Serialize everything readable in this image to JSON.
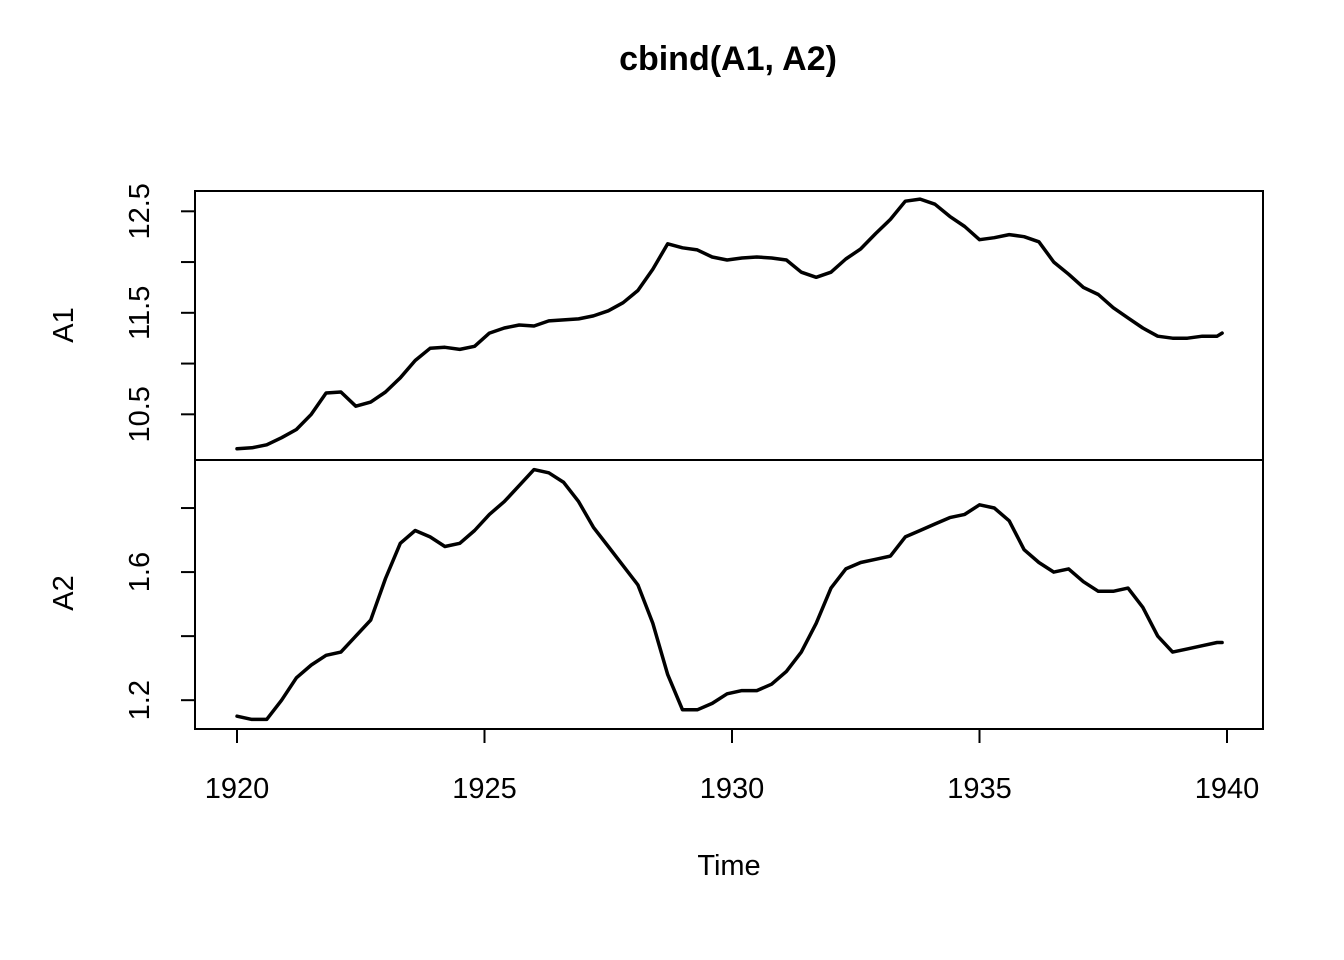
{
  "chart_data": {
    "type": "line",
    "title": "cbind(A1, A2)",
    "xlabel": "Time",
    "x_range": [
      1920,
      1940
    ],
    "x_ticks": [
      1920,
      1925,
      1930,
      1935,
      1940
    ],
    "x_tick_labels": [
      "1920",
      "1925",
      "1930",
      "1935",
      "1940"
    ],
    "grid": false,
    "panels": [
      {
        "name": "A1",
        "ylabel": "A1",
        "ylim": [
          10.05,
          12.7
        ],
        "y_ticks": [
          10.5,
          11.0,
          11.5,
          12.0,
          12.5
        ],
        "y_tick_labels": [
          "10.5",
          "",
          "11.5",
          "",
          "12.5"
        ],
        "x": [
          1920.0,
          1920.3,
          1920.6,
          1920.9,
          1921.2,
          1921.5,
          1921.8,
          1922.1,
          1922.4,
          1922.7,
          1923.0,
          1923.3,
          1923.6,
          1923.9,
          1924.2,
          1924.5,
          1924.8,
          1925.1,
          1925.4,
          1925.7,
          1926.0,
          1926.3,
          1926.6,
          1926.9,
          1927.2,
          1927.5,
          1927.8,
          1928.1,
          1928.4,
          1928.7,
          1929.0,
          1929.3,
          1929.6,
          1929.9,
          1930.2,
          1930.5,
          1930.8,
          1931.1,
          1931.4,
          1931.7,
          1932.0,
          1932.3,
          1932.6,
          1932.9,
          1933.2,
          1933.5,
          1933.8,
          1934.1,
          1934.4,
          1934.7,
          1935.0,
          1935.3,
          1935.6,
          1935.9,
          1936.2,
          1936.5,
          1936.8,
          1937.1,
          1937.4,
          1937.7,
          1938.0,
          1938.3,
          1938.6,
          1938.9,
          1939.2,
          1939.5,
          1939.8,
          1939.9
        ],
        "values": [
          10.16,
          10.17,
          10.2,
          10.27,
          10.35,
          10.5,
          10.71,
          10.72,
          10.58,
          10.62,
          10.72,
          10.86,
          11.03,
          11.15,
          11.16,
          11.14,
          11.17,
          11.3,
          11.35,
          11.38,
          11.37,
          11.42,
          11.43,
          11.44,
          11.47,
          11.52,
          11.6,
          11.72,
          11.93,
          12.18,
          12.14,
          12.12,
          12.05,
          12.02,
          12.04,
          12.05,
          12.04,
          12.02,
          11.9,
          11.85,
          11.9,
          12.03,
          12.13,
          12.28,
          12.42,
          12.6,
          12.62,
          12.57,
          12.45,
          12.35,
          12.22,
          12.24,
          12.27,
          12.25,
          12.2,
          12.0,
          11.88,
          11.75,
          11.68,
          11.55,
          11.45,
          11.35,
          11.27,
          11.25,
          11.25,
          11.27,
          11.27,
          11.3
        ]
      },
      {
        "name": "A2",
        "ylabel": "A2",
        "ylim": [
          1.11,
          1.95
        ],
        "y_ticks": [
          1.2,
          1.4,
          1.6,
          1.8
        ],
        "y_tick_labels": [
          "1.2",
          "",
          "1.6",
          ""
        ],
        "x": [
          1920.0,
          1920.3,
          1920.6,
          1920.9,
          1921.2,
          1921.5,
          1921.8,
          1922.1,
          1922.4,
          1922.7,
          1923.0,
          1923.3,
          1923.6,
          1923.9,
          1924.2,
          1924.5,
          1924.8,
          1925.1,
          1925.4,
          1925.7,
          1926.0,
          1926.3,
          1926.6,
          1926.9,
          1927.2,
          1927.5,
          1927.8,
          1928.1,
          1928.4,
          1928.7,
          1929.0,
          1929.3,
          1929.6,
          1929.9,
          1930.2,
          1930.5,
          1930.8,
          1931.1,
          1931.4,
          1931.7,
          1932.0,
          1932.3,
          1932.6,
          1932.9,
          1933.2,
          1933.5,
          1933.8,
          1934.1,
          1934.4,
          1934.7,
          1935.0,
          1935.3,
          1935.6,
          1935.9,
          1936.2,
          1936.5,
          1936.8,
          1937.1,
          1937.4,
          1937.7,
          1938.0,
          1938.3,
          1938.6,
          1938.9,
          1939.2,
          1939.5,
          1939.8,
          1939.9
        ],
        "values": [
          1.15,
          1.14,
          1.14,
          1.2,
          1.27,
          1.31,
          1.34,
          1.35,
          1.4,
          1.45,
          1.58,
          1.69,
          1.73,
          1.71,
          1.68,
          1.69,
          1.73,
          1.78,
          1.82,
          1.87,
          1.92,
          1.91,
          1.88,
          1.82,
          1.74,
          1.68,
          1.62,
          1.56,
          1.44,
          1.28,
          1.17,
          1.17,
          1.19,
          1.22,
          1.23,
          1.23,
          1.25,
          1.29,
          1.35,
          1.44,
          1.55,
          1.61,
          1.63,
          1.64,
          1.65,
          1.71,
          1.73,
          1.75,
          1.77,
          1.78,
          1.81,
          1.8,
          1.76,
          1.67,
          1.63,
          1.6,
          1.61,
          1.57,
          1.54,
          1.54,
          1.55,
          1.49,
          1.4,
          1.35,
          1.36,
          1.37,
          1.38,
          1.38
        ]
      }
    ]
  }
}
